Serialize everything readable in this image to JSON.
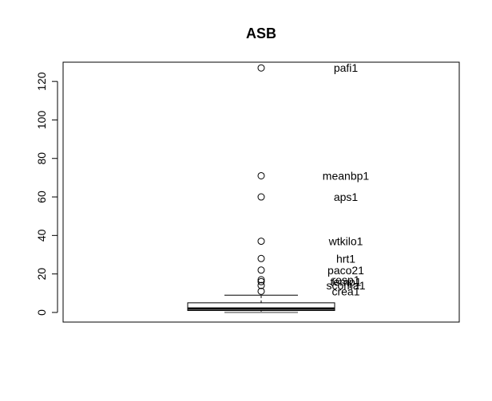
{
  "chart_data": {
    "type": "boxplot",
    "title": "ASB",
    "xlabel": "",
    "ylabel": "",
    "ylim": [
      -5,
      130
    ],
    "yticks": [
      0,
      20,
      40,
      60,
      80,
      100,
      120
    ],
    "box": {
      "min": 0,
      "q1": 1,
      "median": 2,
      "q3": 5,
      "max": 9
    },
    "outliers": [
      {
        "value": 127,
        "label": "pafi1"
      },
      {
        "value": 71,
        "label": "meanbp1"
      },
      {
        "value": 60,
        "label": "aps1"
      },
      {
        "value": 37,
        "label": "wtkilo1"
      },
      {
        "value": 28,
        "label": "hrt1"
      },
      {
        "value": 22,
        "label": "paco21"
      },
      {
        "value": 17,
        "label": "resp1"
      },
      {
        "value": 16,
        "label": "temp1"
      },
      {
        "value": 14,
        "label": "scoma1"
      },
      {
        "value": 11,
        "label": "crea1"
      }
    ]
  }
}
